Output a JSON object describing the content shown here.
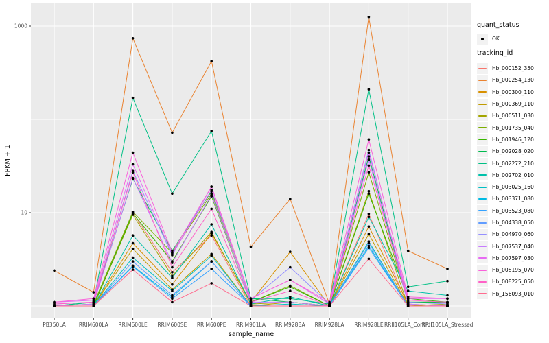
{
  "legend": {
    "quant_status_title": "quant_status",
    "quant_status_items": [
      "OK"
    ],
    "tracking_id_title": "tracking_id"
  },
  "theme": {
    "background": "#FFFFFF",
    "panel_bg": "#EBEBEB",
    "grid_color": "#FFFFFF",
    "tick_label_color": "#4D4D4D",
    "axis_title_color": "#000000",
    "point_color": "#000000",
    "legend_key_bg": "#F2F2F2"
  },
  "chart_data": {
    "type": "line",
    "title": "",
    "xlabel": "sample_name",
    "ylabel": "FPKM + 1",
    "y_scale": "log10",
    "ylim": [
      0.75,
      1750
    ],
    "y_tick_labels": [
      "1000",
      "10"
    ],
    "y_tick_values": [
      1000,
      10
    ],
    "y_gridline_values": [
      1,
      10,
      100,
      1000
    ],
    "grid": true,
    "legend_position": "right",
    "point_marker": "filled-black-dot",
    "categories": [
      "PB350LA",
      "RRIM600LA",
      "RRIM600LE",
      "RRIM600SE",
      "RRIM600PE",
      "RRIM901LA",
      "RRIM928BA",
      "RRIM928LA",
      "RRIM928LE",
      "RRII105LA_Control",
      "RRII105LA_Stressed"
    ],
    "series": [
      {
        "name": "Hb_000152_350",
        "color": "#F8766D",
        "values": [
          1.0,
          1.0,
          10.0,
          2.3,
          5.7,
          1.0,
          1.0,
          1.0,
          9.7,
          1.0,
          1.0
        ]
      },
      {
        "name": "Hb_000254_130",
        "color": "#EA8331",
        "values": [
          2.4,
          1.4,
          740,
          72,
          420,
          4.3,
          14.0,
          1.05,
          1250,
          3.9,
          2.5
        ]
      },
      {
        "name": "Hb_000300_110",
        "color": "#D89000",
        "values": [
          1.0,
          1.0,
          4.7,
          1.7,
          6.0,
          1.1,
          3.8,
          1.0,
          7.1,
          1.05,
          1.0
        ]
      },
      {
        "name": "Hb_000369_110",
        "color": "#C09B00",
        "values": [
          1.0,
          1.0,
          4.1,
          1.5,
          3.6,
          1.0,
          1.1,
          1.0,
          5.9,
          1.0,
          1.0
        ]
      },
      {
        "name": "Hb_000511_030",
        "color": "#A3A500",
        "values": [
          1.0,
          1.0,
          9.5,
          2.1,
          6.2,
          1.05,
          1.1,
          1.0,
          17.0,
          1.0,
          1.05
        ]
      },
      {
        "name": "Hb_001735_040",
        "color": "#7CAE00",
        "values": [
          1.0,
          1.05,
          10.2,
          3.7,
          16.0,
          1.1,
          1.65,
          1.0,
          27.0,
          1.1,
          1.1
        ]
      },
      {
        "name": "Hb_001946_120",
        "color": "#39B600",
        "values": [
          1.0,
          1.0,
          9.8,
          3.0,
          15.0,
          1.1,
          1.6,
          1.0,
          16.0,
          1.2,
          1.1
        ]
      },
      {
        "name": "Hb_002028_020",
        "color": "#00BB4E",
        "values": [
          1.0,
          1.1,
          23.0,
          3.9,
          17.0,
          1.2,
          1.1,
          1.0,
          40.0,
          1.1,
          1.1
        ]
      },
      {
        "name": "Hb_002272_210",
        "color": "#00C085",
        "values": [
          1.0,
          1.1,
          170,
          16.0,
          75.0,
          1.2,
          1.2,
          1.05,
          210,
          1.6,
          1.85
        ]
      },
      {
        "name": "Hb_002702_010",
        "color": "#00C1AA",
        "values": [
          1.0,
          1.0,
          5.7,
          2.0,
          7.5,
          1.05,
          1.25,
          1.0,
          9.0,
          1.45,
          1.3
        ]
      },
      {
        "name": "Hb_003025_160",
        "color": "#00BFC4",
        "values": [
          1.0,
          1.0,
          3.3,
          1.45,
          3.45,
          1.0,
          1.05,
          1.0,
          4.9,
          1.0,
          1.0
        ]
      },
      {
        "name": "Hb_003371_080",
        "color": "#00BAE3",
        "values": [
          1.0,
          1.0,
          2.7,
          1.25,
          3.0,
          1.0,
          1.0,
          1.0,
          4.4,
          1.0,
          1.0
        ]
      },
      {
        "name": "Hb_003523_080",
        "color": "#35A2FF",
        "values": [
          1.0,
          1.0,
          2.65,
          1.2,
          2.5,
          1.0,
          1.0,
          1.0,
          4.2,
          1.0,
          1.0
        ]
      },
      {
        "name": "Hb_004338_050",
        "color": "#619CFF",
        "values": [
          1.0,
          1.0,
          3.0,
          1.3,
          3.0,
          1.0,
          1.0,
          1.0,
          4.7,
          1.0,
          1.0
        ]
      },
      {
        "name": "Hb_004970_060",
        "color": "#9590FF",
        "values": [
          1.05,
          1.1,
          28.0,
          3.5,
          19.0,
          1.15,
          2.6,
          1.05,
          47.0,
          1.1,
          1.05
        ]
      },
      {
        "name": "Hb_007537_040",
        "color": "#C77CFF",
        "values": [
          1.0,
          1.05,
          23.5,
          2.9,
          15.5,
          1.1,
          1.1,
          1.0,
          37.0,
          1.05,
          1.0
        ]
      },
      {
        "name": "Hb_007597_030",
        "color": "#E76BF3",
        "values": [
          1.1,
          1.15,
          33.0,
          3.6,
          17.5,
          1.2,
          1.9,
          1.05,
          44.0,
          1.2,
          1.2
        ]
      },
      {
        "name": "Hb_008195_070",
        "color": "#FA62DB",
        "values": [
          1.1,
          1.2,
          44.0,
          3.75,
          19.0,
          1.2,
          1.9,
          1.1,
          61.0,
          1.25,
          1.2
        ]
      },
      {
        "name": "Hb_008225_050",
        "color": "#FF61C7",
        "values": [
          1.05,
          1.1,
          27.0,
          2.6,
          11.0,
          1.1,
          1.45,
          1.0,
          32.0,
          1.15,
          1.1
        ]
      },
      {
        "name": "Hb_156093_010",
        "color": "#FF6C90",
        "values": [
          1.0,
          1.0,
          2.45,
          1.1,
          1.75,
          1.0,
          1.0,
          1.0,
          3.2,
          1.0,
          1.0
        ]
      }
    ]
  }
}
